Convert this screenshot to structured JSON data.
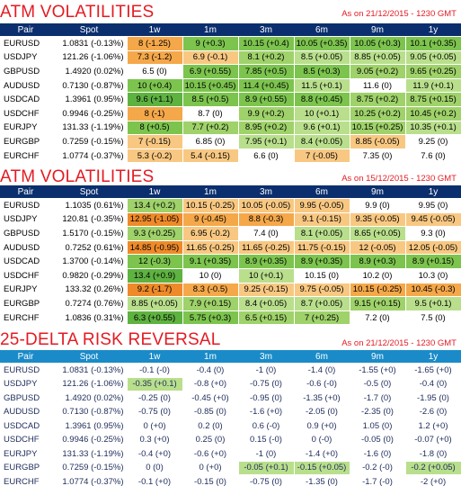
{
  "columns": [
    "Pair",
    "Spot",
    "1w",
    "1m",
    "3m",
    "6m",
    "9m",
    "1y"
  ],
  "colors": {
    "title_red": "#e31b23",
    "header_dark_blue": "#0b2f6e",
    "header_light_blue": "#1a8bc8",
    "green_light": "#b9df8c",
    "green": "#9fd26a",
    "green_medium": "#7cc44e",
    "green_dark": "#5eb240",
    "orange_light": "#f8c882",
    "orange": "#f5a84a",
    "orange_dark": "#ee8a2a",
    "white": "#ffffff"
  },
  "sections": [
    {
      "title": "ATM VOLATILITIES",
      "as_of": "As on 21/12/2015 - 1230 GMT",
      "rows": [
        {
          "pair": "EURUSD",
          "spot": "1.0831 (-0.13%)",
          "cells": [
            [
              "8 (-1.25)",
              "o2"
            ],
            [
              "9 (+0.3)",
              "g2"
            ],
            [
              "10.15 (+0.4)",
              "g2"
            ],
            [
              "10.05 (+0.35)",
              "g2"
            ],
            [
              "10.05 (+0.3)",
              "g2"
            ],
            [
              "10.1 (+0.35)",
              "g2"
            ]
          ]
        },
        {
          "pair": "USDJPY",
          "spot": "121.26 (-1.06%)",
          "cells": [
            [
              "7.3 (-1.2)",
              "o2"
            ],
            [
              "6.9 (-0.1)",
              "o1"
            ],
            [
              "8.1 (+0.2)",
              "g1"
            ],
            [
              "8.5 (+0.05)",
              "g4"
            ],
            [
              "8.85 (+0.05)",
              "g4"
            ],
            [
              "9.05 (+0.05)",
              "g4"
            ]
          ]
        },
        {
          "pair": "GBPUSD",
          "spot": "1.4920 (0.02%)",
          "cells": [
            [
              "6.5 (0)",
              "w"
            ],
            [
              "6.9 (+0.55)",
              "g2"
            ],
            [
              "7.85 (+0.5)",
              "g2"
            ],
            [
              "8.5 (+0.3)",
              "g2"
            ],
            [
              "9.05 (+0.2)",
              "g1"
            ],
            [
              "9.65 (+0.25)",
              "g1"
            ]
          ]
        },
        {
          "pair": "AUDUSD",
          "spot": "0.7130 (-0.87%)",
          "cells": [
            [
              "10 (+0.4)",
              "g2"
            ],
            [
              "10.15 (+0.45)",
              "g2"
            ],
            [
              "11.4 (+0.45)",
              "g2"
            ],
            [
              "11.5 (+0.1)",
              "g4"
            ],
            [
              "11.6 (0)",
              "w"
            ],
            [
              "11.9 (+0.1)",
              "g4"
            ]
          ]
        },
        {
          "pair": "USDCAD",
          "spot": "1.3961 (0.95%)",
          "cells": [
            [
              "9.6 (+1.1)",
              "g3"
            ],
            [
              "8.5 (+0.5)",
              "g2"
            ],
            [
              "8.9 (+0.55)",
              "g2"
            ],
            [
              "8.8 (+0.45)",
              "g2"
            ],
            [
              "8.75 (+0.2)",
              "g1"
            ],
            [
              "8.75 (+0.15)",
              "g1"
            ]
          ]
        },
        {
          "pair": "USDCHF",
          "spot": "0.9946 (-0.25%)",
          "cells": [
            [
              "8 (-1)",
              "o2"
            ],
            [
              "8.7 (0)",
              "w"
            ],
            [
              "9.9 (+0.2)",
              "g1"
            ],
            [
              "10 (+0.1)",
              "g4"
            ],
            [
              "10.25 (+0.2)",
              "g1"
            ],
            [
              "10.45 (+0.2)",
              "g1"
            ]
          ]
        },
        {
          "pair": "EURJPY",
          "spot": "131.33 (-1.19%)",
          "cells": [
            [
              "8 (+0.5)",
              "g2"
            ],
            [
              "7.7 (+0.2)",
              "g1"
            ],
            [
              "8.95 (+0.2)",
              "g1"
            ],
            [
              "9.6 (+0.1)",
              "g4"
            ],
            [
              "10.15 (+0.25)",
              "g1"
            ],
            [
              "10.35 (+0.1)",
              "g4"
            ]
          ]
        },
        {
          "pair": "EURGBP",
          "spot": "0.7259 (-0.15%)",
          "cells": [
            [
              "7 (-0.15)",
              "o1"
            ],
            [
              "6.85 (0)",
              "w"
            ],
            [
              "7.95 (+0.1)",
              "g4"
            ],
            [
              "8.4 (+0.05)",
              "g4"
            ],
            [
              "8.85 (-0.05)",
              "o1"
            ],
            [
              "9.25 (0)",
              "w"
            ]
          ]
        },
        {
          "pair": "EURCHF",
          "spot": "1.0774 (-0.37%)",
          "cells": [
            [
              "5.3 (-0.2)",
              "o1"
            ],
            [
              "5.4 (-0.15)",
              "o1"
            ],
            [
              "6.6 (0)",
              "w"
            ],
            [
              "7 (-0.05)",
              "o1"
            ],
            [
              "7.35 (0)",
              "w"
            ],
            [
              "7.6 (0)",
              "w"
            ]
          ]
        }
      ]
    },
    {
      "title": "ATM VOLATILITIES",
      "as_of": "As on 15/12/2015 - 1230 GMT",
      "rows": [
        {
          "pair": "EURUSD",
          "spot": "1.1035 (0.61%)",
          "cells": [
            [
              "13.4 (+0.2)",
              "g1"
            ],
            [
              "10.15 (-0.25)",
              "o1"
            ],
            [
              "10.05 (-0.05)",
              "o1"
            ],
            [
              "9.95 (-0.05)",
              "o1"
            ],
            [
              "9.9 (0)",
              "w"
            ],
            [
              "9.95 (0)",
              "w"
            ]
          ]
        },
        {
          "pair": "USDJPY",
          "spot": "120.81 (-0.35%)",
          "cells": [
            [
              "12.95 (-1.05)",
              "o3"
            ],
            [
              "9 (-0.45)",
              "o2"
            ],
            [
              "8.8 (-0.3)",
              "o2"
            ],
            [
              "9.1 (-0.15)",
              "o1"
            ],
            [
              "9.35 (-0.05)",
              "o1"
            ],
            [
              "9.45 (-0.05)",
              "o1"
            ]
          ]
        },
        {
          "pair": "GBPUSD",
          "spot": "1.5170 (-0.15%)",
          "cells": [
            [
              "9.3 (+0.25)",
              "g1"
            ],
            [
              "6.95 (-0.2)",
              "o1"
            ],
            [
              "7.4 (0)",
              "w"
            ],
            [
              "8.1 (+0.05)",
              "g4"
            ],
            [
              "8.65 (+0.05)",
              "g4"
            ],
            [
              "9.3 (0)",
              "w"
            ]
          ]
        },
        {
          "pair": "AUDUSD",
          "spot": "0.7252 (0.61%)",
          "cells": [
            [
              "14.85 (-0.95)",
              "o3"
            ],
            [
              "11.65 (-0.25)",
              "o1"
            ],
            [
              "11.65 (-0.25)",
              "o1"
            ],
            [
              "11.75 (-0.15)",
              "o1"
            ],
            [
              "12 (-0.05)",
              "o1"
            ],
            [
              "12.05 (-0.05)",
              "o1"
            ]
          ]
        },
        {
          "pair": "USDCAD",
          "spot": "1.3700 (-0.14%)",
          "cells": [
            [
              "12 (-0.3)",
              "g2"
            ],
            [
              "9.1 (+0.35)",
              "g2"
            ],
            [
              "8.9 (+0.35)",
              "g2"
            ],
            [
              "8.9 (+0.35)",
              "g2"
            ],
            [
              "8.9 (+0.3)",
              "g2"
            ],
            [
              "8.9 (+0.15)",
              "g2"
            ]
          ]
        },
        {
          "pair": "USDCHF",
          "spot": "0.9820 (-0.29%)",
          "cells": [
            [
              "13.4 (+0.9)",
              "g3"
            ],
            [
              "10 (0)",
              "w"
            ],
            [
              "10 (+0.1)",
              "g4"
            ],
            [
              "10.15 (0)",
              "w"
            ],
            [
              "10.2 (0)",
              "w"
            ],
            [
              "10.3 (0)",
              "w"
            ]
          ]
        },
        {
          "pair": "EURJPY",
          "spot": "133.32 (0.26%)",
          "cells": [
            [
              "9.2 (-1.7)",
              "o3"
            ],
            [
              "8.3 (-0.5)",
              "o2"
            ],
            [
              "9.25 (-0.15)",
              "o1"
            ],
            [
              "9.75 (-0.05)",
              "o1"
            ],
            [
              "10.15 (-0.25)",
              "o2"
            ],
            [
              "10.45 (-0.3)",
              "o2"
            ]
          ]
        },
        {
          "pair": "EURGBP",
          "spot": "0.7274 (0.76%)",
          "cells": [
            [
              "8.85 (+0.05)",
              "g4"
            ],
            [
              "7.9 (+0.15)",
              "g1"
            ],
            [
              "8.4 (+0.05)",
              "g4"
            ],
            [
              "8.7 (+0.05)",
              "g4"
            ],
            [
              "9.15 (+0.15)",
              "g1"
            ],
            [
              "9.5 (+0.1)",
              "g4"
            ]
          ]
        },
        {
          "pair": "EURCHF",
          "spot": "1.0836 (0.31%)",
          "cells": [
            [
              "6.3 (+0.55)",
              "g3"
            ],
            [
              "5.75 (+0.3)",
              "g2"
            ],
            [
              "6.5 (+0.15)",
              "g1"
            ],
            [
              "7 (+0.25)",
              "g1"
            ],
            [
              "7.2 (0)",
              "w"
            ],
            [
              "7.5 (0)",
              "w"
            ]
          ]
        }
      ]
    },
    {
      "title": "25-DELTA RISK REVERSAL",
      "as_of": "As on 21/12/2015 - 1230 GMT",
      "rows": [
        {
          "pair": "EURUSD",
          "spot": "1.0831 (-0.13%)",
          "cells": [
            [
              "-0.1 (-0)",
              "w"
            ],
            [
              "-0.4 (0)",
              "w"
            ],
            [
              "-1 (0)",
              "w"
            ],
            [
              "-1.4 (0)",
              "w"
            ],
            [
              "-1.55 (+0)",
              "w"
            ],
            [
              "-1.65 (+0)",
              "w"
            ]
          ]
        },
        {
          "pair": "USDJPY",
          "spot": "121.26 (-1.06%)",
          "cells": [
            [
              "-0.35 (+0.1)",
              "g4"
            ],
            [
              "-0.8 (+0)",
              "w"
            ],
            [
              "-0.75 (0)",
              "w"
            ],
            [
              "-0.6 (-0)",
              "w"
            ],
            [
              "-0.5 (0)",
              "w"
            ],
            [
              "-0.4 (0)",
              "w"
            ]
          ]
        },
        {
          "pair": "GBPUSD",
          "spot": "1.4920 (0.02%)",
          "cells": [
            [
              "-0.25 (0)",
              "w"
            ],
            [
              "-0.45 (+0)",
              "w"
            ],
            [
              "-0.95 (0)",
              "w"
            ],
            [
              "-1.35 (+0)",
              "w"
            ],
            [
              "-1.7 (0)",
              "w"
            ],
            [
              "-1.95 (0)",
              "w"
            ]
          ]
        },
        {
          "pair": "AUDUSD",
          "spot": "0.7130 (-0.87%)",
          "cells": [
            [
              "-0.75 (0)",
              "w"
            ],
            [
              "-0.85 (0)",
              "w"
            ],
            [
              "-1.6 (+0)",
              "w"
            ],
            [
              "-2.05 (0)",
              "w"
            ],
            [
              "-2.35 (0)",
              "w"
            ],
            [
              "-2.6 (0)",
              "w"
            ]
          ]
        },
        {
          "pair": "USDCAD",
          "spot": "1.3961 (0.95%)",
          "cells": [
            [
              "0 (+0)",
              "w"
            ],
            [
              "0.2 (0)",
              "w"
            ],
            [
              "0.6 (-0)",
              "w"
            ],
            [
              "0.9 (+0)",
              "w"
            ],
            [
              "1.05 (0)",
              "w"
            ],
            [
              "1.2 (+0)",
              "w"
            ]
          ]
        },
        {
          "pair": "USDCHF",
          "spot": "0.9946 (-0.25%)",
          "cells": [
            [
              "0.3 (+0)",
              "w"
            ],
            [
              "0.25 (0)",
              "w"
            ],
            [
              "0.15 (-0)",
              "w"
            ],
            [
              "0 (-0)",
              "w"
            ],
            [
              "-0.05 (0)",
              "w"
            ],
            [
              "-0.07 (+0)",
              "w"
            ]
          ]
        },
        {
          "pair": "EURJPY",
          "spot": "131.33 (-1.19%)",
          "cells": [
            [
              "-0.4 (+0)",
              "w"
            ],
            [
              "-0.6 (+0)",
              "w"
            ],
            [
              "-1 (0)",
              "w"
            ],
            [
              "-1.4 (+0)",
              "w"
            ],
            [
              "-1.6 (0)",
              "w"
            ],
            [
              "-1.8 (0)",
              "w"
            ]
          ]
        },
        {
          "pair": "EURGBP",
          "spot": "0.7259 (-0.15%)",
          "cells": [
            [
              "0 (0)",
              "w"
            ],
            [
              "0 (+0)",
              "w"
            ],
            [
              "-0.05 (+0.1)",
              "g4"
            ],
            [
              "-0.15 (+0.05)",
              "g4"
            ],
            [
              "-0.2 (-0)",
              "w"
            ],
            [
              "-0.2 (+0.05)",
              "g4"
            ]
          ]
        },
        {
          "pair": "EURCHF",
          "spot": "1.0774 (-0.37%)",
          "cells": [
            [
              "-0.1 (+0)",
              "w"
            ],
            [
              "-0.15 (0)",
              "w"
            ],
            [
              "-0.75 (0)",
              "w"
            ],
            [
              "-1.35 (0)",
              "w"
            ],
            [
              "-1.7 (-0)",
              "w"
            ],
            [
              "-2 (+0)",
              "w"
            ]
          ]
        }
      ]
    }
  ]
}
